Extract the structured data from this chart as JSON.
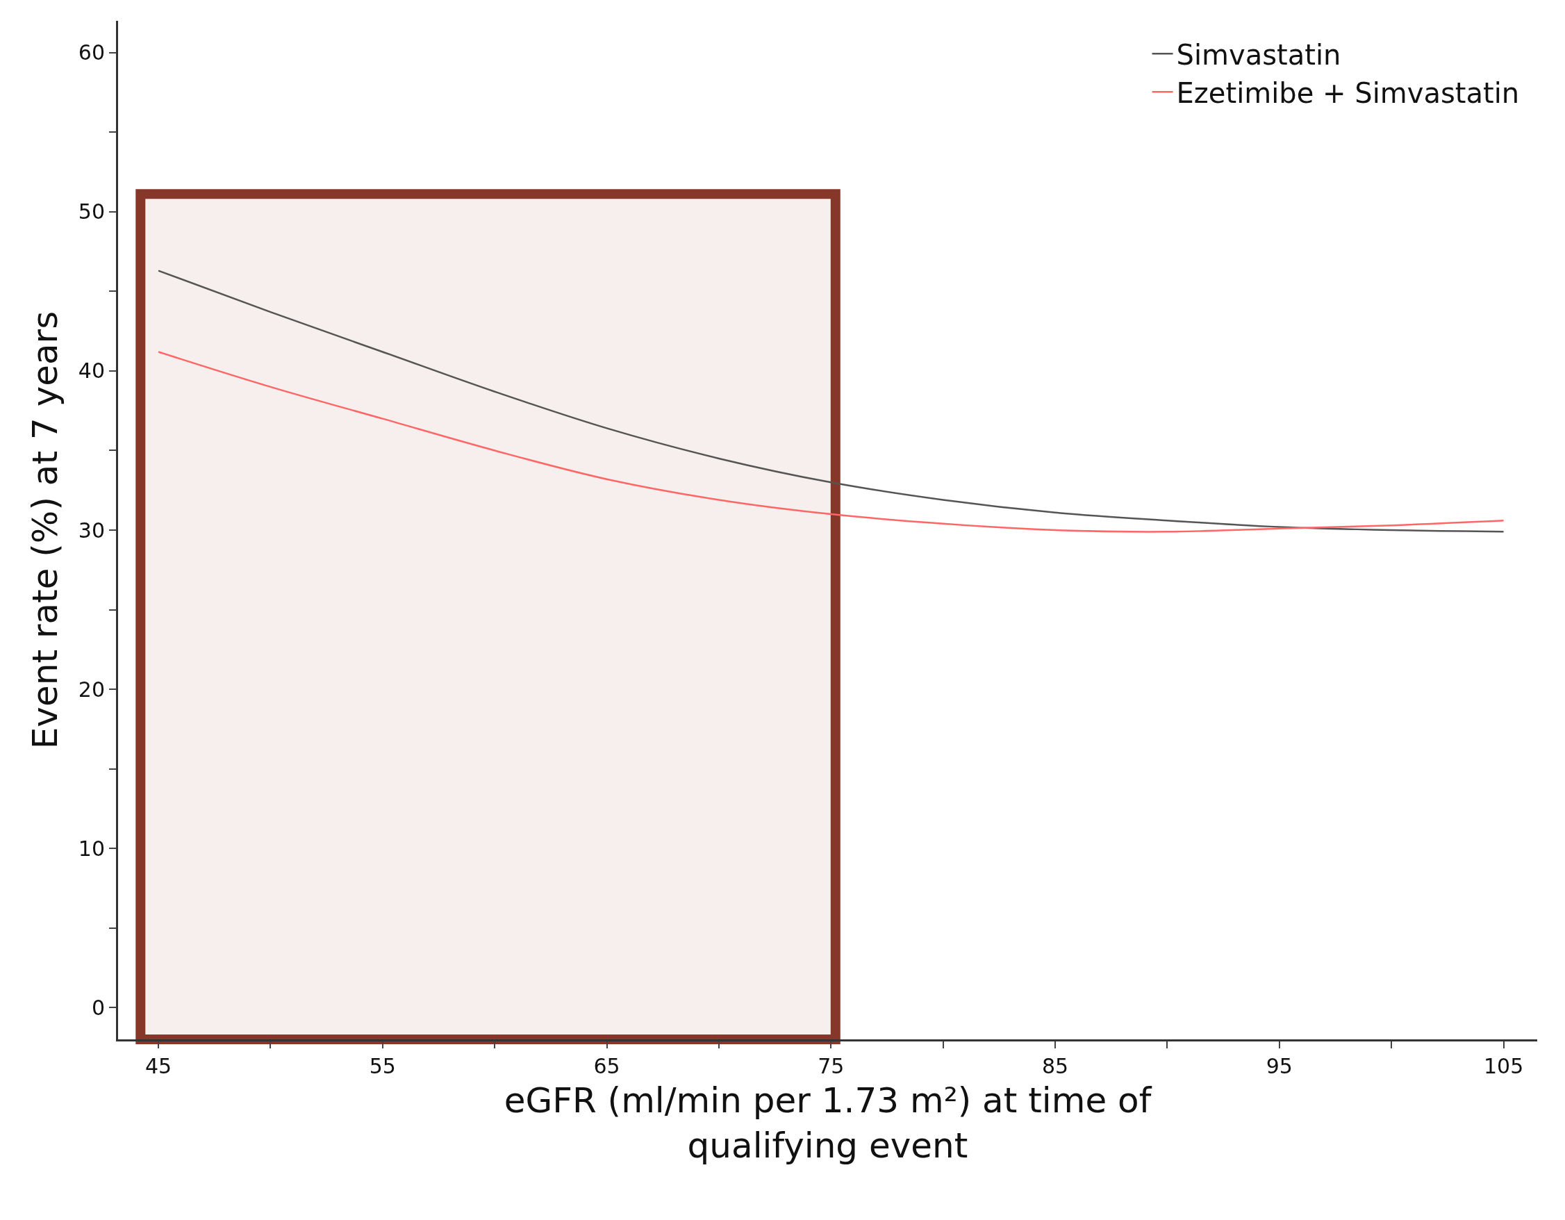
{
  "chart_data": {
    "type": "line",
    "xlabel": "eGFR (ml/min per 1.73 m²) at time of qualifying event",
    "ylabel": "Event rate (%) at 7 years",
    "x": [
      45,
      50,
      55,
      60,
      65,
      70,
      75,
      80,
      85,
      90,
      95,
      100,
      105
    ],
    "series": [
      {
        "name": "Simvastatin",
        "color": "#555555",
        "values": [
          46.3,
          43.7,
          41.2,
          38.7,
          36.4,
          34.5,
          33.0,
          31.9,
          31.1,
          30.6,
          30.2,
          30.0,
          29.9
        ]
      },
      {
        "name": "Ezetimibe + Simvastatin",
        "color": "#ff6666",
        "values": [
          41.2,
          39.0,
          37.0,
          35.0,
          33.2,
          31.9,
          31.0,
          30.4,
          30.0,
          29.9,
          30.1,
          30.3,
          30.6
        ]
      }
    ],
    "xlim": [
      43.2,
      106.5
    ],
    "ylim": [
      -2,
      62
    ],
    "xticks": [
      45,
      {
        "value": 50,
        "label": null
      },
      55,
      {
        "value": 60,
        "label": null
      },
      65,
      {
        "value": 70,
        "label": null
      },
      75,
      {
        "value": 80,
        "label": null
      },
      85,
      {
        "value": 90,
        "label": null
      },
      95,
      {
        "value": 100,
        "label": null
      },
      105
    ],
    "yticks": [
      0,
      {
        "value": 5,
        "label": null
      },
      10,
      {
        "value": 15,
        "label": null
      },
      20,
      {
        "value": 25,
        "label": null
      },
      30,
      {
        "value": 35,
        "label": null
      },
      40,
      {
        "value": 45,
        "label": null
      },
      50,
      {
        "value": 55,
        "label": null
      },
      60
    ],
    "bands": [
      {
        "axis": "x",
        "from": 44.2,
        "to": 75.2,
        "color": "#86372a"
      }
    ],
    "legend": "top right",
    "grid": false,
    "marker": "none",
    "line_style": "solid"
  }
}
